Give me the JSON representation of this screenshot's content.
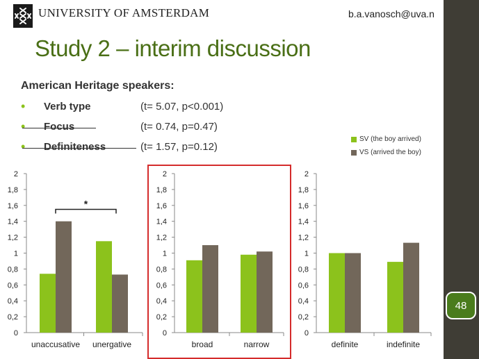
{
  "header": {
    "university": "UNIVERSITY OF AMSTERDAM",
    "email": "b.a.vanosch@uva.n"
  },
  "slide": {
    "title": "Study 2 – interim discussion",
    "subtitle": "American Heritage speakers:",
    "bullets": [
      {
        "label": "Verb type",
        "stat": "(t= 5.07, p<0.001)",
        "struck": false
      },
      {
        "label": "Focus",
        "stat": "(t= 0.74, p=0.47)",
        "struck": true
      },
      {
        "label": "Definiteness",
        "stat": "(t= 1.57, p=0.12)",
        "struck": true
      }
    ],
    "page_number": "48"
  },
  "colors": {
    "sv": "#8cc21c",
    "vs": "#72675a",
    "title": "#4a6f16",
    "highlight_box": "#d42b2b"
  },
  "legend": {
    "sv": "SV (the boy arrived)",
    "vs": "VS (arrived the boy)"
  },
  "chart_data": [
    {
      "type": "bar",
      "categories": [
        "unaccusative",
        "unergative"
      ],
      "series": [
        {
          "name": "SV (the boy arrived)",
          "values": [
            0.74,
            1.15
          ]
        },
        {
          "name": "VS (arrived the boy)",
          "values": [
            1.4,
            0.73
          ]
        }
      ],
      "ylim": [
        0,
        2
      ],
      "yticks": [
        "0",
        "0,2",
        "0,4",
        "0,6",
        "0,8",
        "1",
        "1,2",
        "1,4",
        "1,6",
        "1,8",
        "2"
      ],
      "annotation": "*",
      "legend": "top-right"
    },
    {
      "type": "bar",
      "categories": [
        "broad",
        "narrow"
      ],
      "series": [
        {
          "name": "SV (the boy arrived)",
          "values": [
            0.91,
            0.98
          ]
        },
        {
          "name": "VS (arrived the boy)",
          "values": [
            1.1,
            1.02
          ]
        }
      ],
      "ylim": [
        0,
        2
      ],
      "yticks": [
        "0",
        "0,2",
        "0,4",
        "0,6",
        "0,8",
        "1",
        "1,2",
        "1,4",
        "1,6",
        "1,8",
        "2"
      ],
      "highlighted": true
    },
    {
      "type": "bar",
      "categories": [
        "definite",
        "indefinite"
      ],
      "series": [
        {
          "name": "SV (the boy arrived)",
          "values": [
            1.0,
            0.89
          ]
        },
        {
          "name": "VS (arrived the boy)",
          "values": [
            1.0,
            1.13
          ]
        }
      ],
      "ylim": [
        0,
        2
      ],
      "yticks": [
        "0",
        "0,2",
        "0,4",
        "0,6",
        "0,8",
        "1",
        "1,2",
        "1,4",
        "1,6",
        "1,8",
        "2"
      ]
    }
  ]
}
